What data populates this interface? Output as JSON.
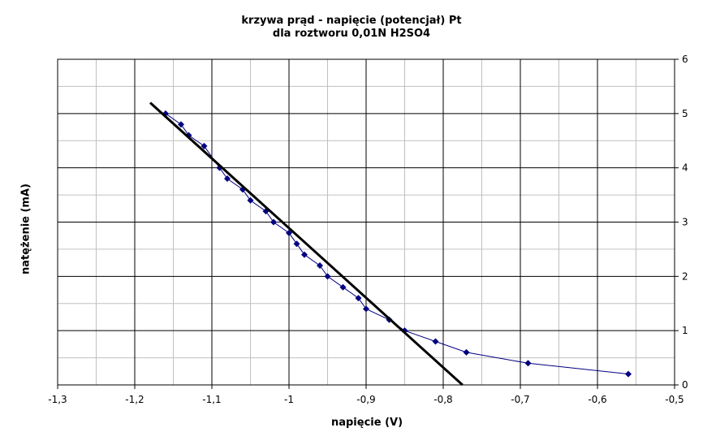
{
  "chart_data": {
    "type": "scatter",
    "title": "krzywa prąd - napięcie (potencjał) Pt",
    "subtitle": "dla roztworu 0,01N H2SO4",
    "xlabel": "napięcie (V)",
    "ylabel": "natężenie (mA)",
    "xlim": [
      -1.3,
      -0.5
    ],
    "ylim": [
      0,
      6
    ],
    "x_ticks": [
      "-1,3",
      "-1,2",
      "-1,1",
      "-1",
      "-0,9",
      "-0,8",
      "-0,7",
      "-0,6",
      "-0,5"
    ],
    "y_ticks": [
      "0",
      "1",
      "2",
      "3",
      "4",
      "5",
      "6"
    ],
    "grid": true,
    "y_axis_side": "right",
    "series": [
      {
        "marker": "diamond",
        "color": "#000080",
        "points": [
          [
            -1.16,
            5.0
          ],
          [
            -1.14,
            4.8
          ],
          [
            -1.13,
            4.6
          ],
          [
            -1.11,
            4.4
          ],
          [
            -1.09,
            4.0
          ],
          [
            -1.08,
            3.8
          ],
          [
            -1.06,
            3.6
          ],
          [
            -1.05,
            3.4
          ],
          [
            -1.03,
            3.2
          ],
          [
            -1.02,
            3.0
          ],
          [
            -1.0,
            2.8
          ],
          [
            -0.99,
            2.6
          ],
          [
            -0.98,
            2.4
          ],
          [
            -0.96,
            2.2
          ],
          [
            -0.95,
            2.0
          ],
          [
            -0.93,
            1.8
          ],
          [
            -0.91,
            1.6
          ],
          [
            -0.9,
            1.4
          ],
          [
            -0.87,
            1.2
          ],
          [
            -0.85,
            1.0
          ],
          [
            -0.81,
            0.8
          ],
          [
            -0.77,
            0.6
          ],
          [
            -0.69,
            0.4
          ],
          [
            -0.56,
            0.2
          ]
        ]
      }
    ],
    "trendline": {
      "color": "#000000",
      "points": [
        [
          -1.18,
          5.2
        ],
        [
          -0.775,
          0.0
        ]
      ]
    }
  }
}
